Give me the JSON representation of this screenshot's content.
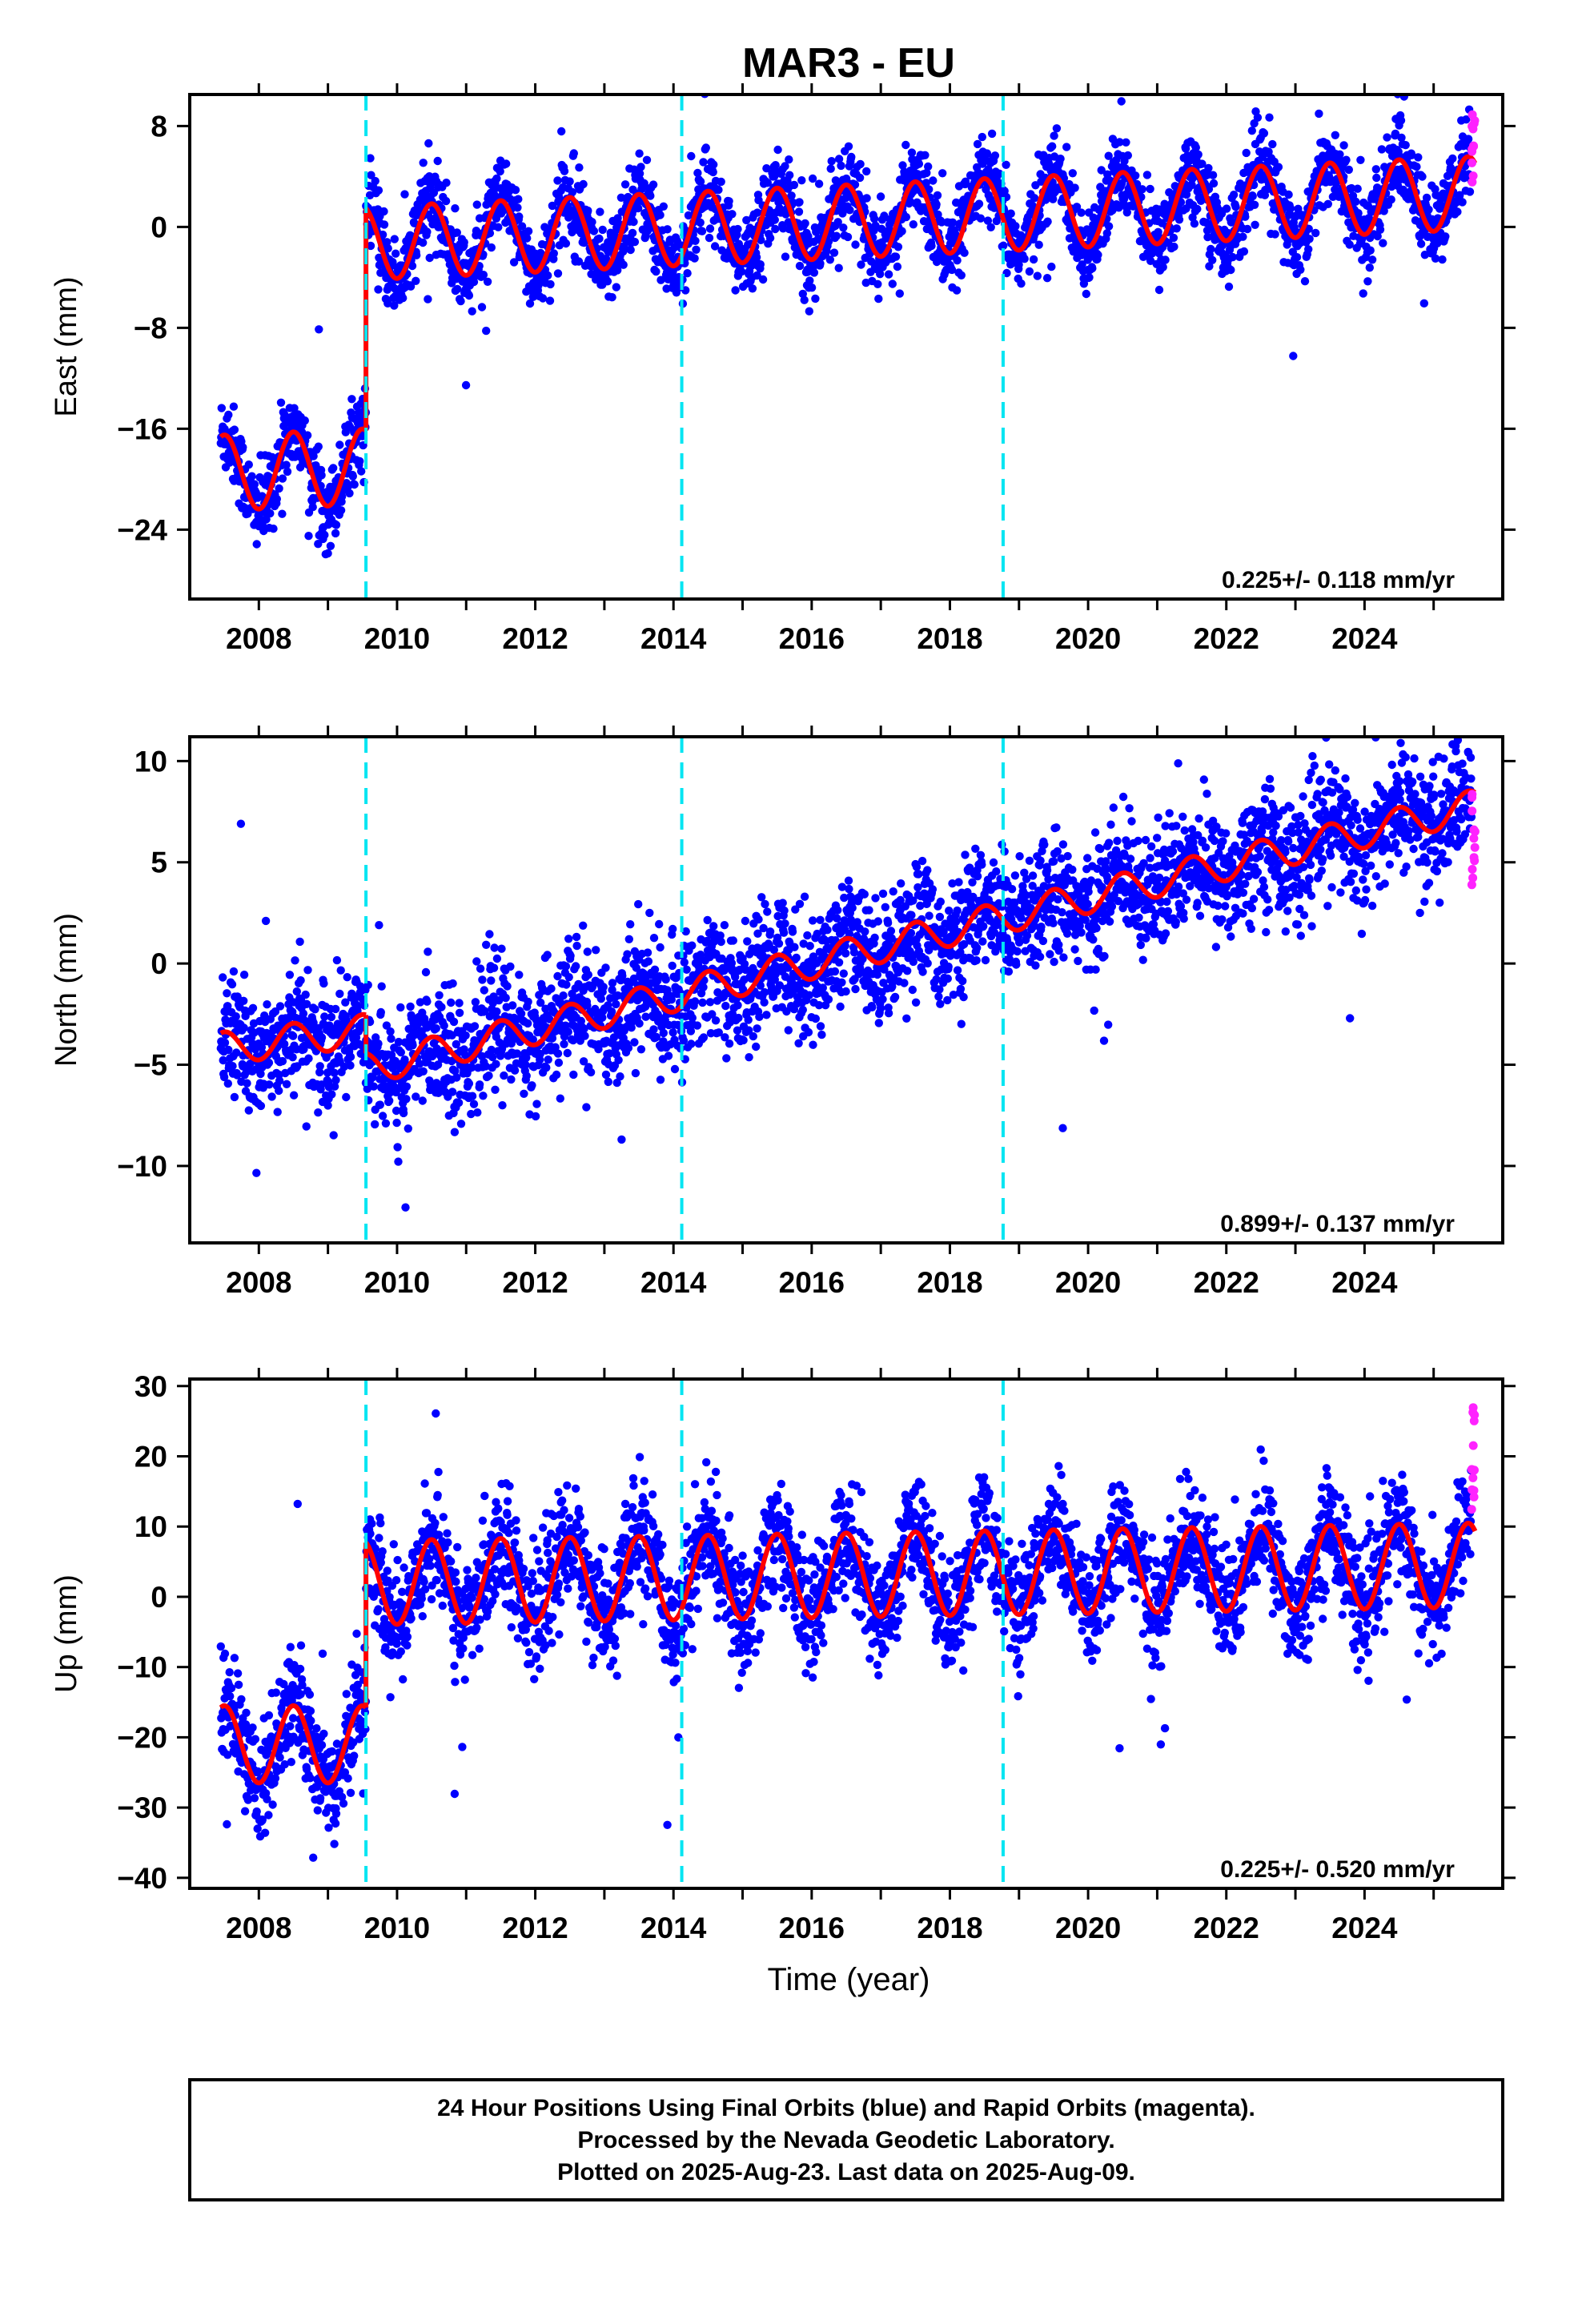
{
  "title": "MAR3 - EU",
  "footer": {
    "lines": [
      "24 Hour Positions Using Final Orbits (blue) and Rapid Orbits (magenta).",
      "Processed by the Nevada Geodetic Laboratory.",
      "Plotted on 2025-Aug-23. Last data on 2025-Aug-09."
    ]
  },
  "colors": {
    "final": "#0000ff",
    "rapid": "#ff22ff",
    "model": "#ff0000",
    "event": "#00e5f2",
    "frame": "#000000"
  },
  "chart_data": [
    {
      "type": "scatter",
      "component": "East",
      "ylabel": "East (mm)",
      "xlabel": "",
      "xlim": [
        2007.0,
        2026.0
      ],
      "ylim": [
        -29.5,
        10.5
      ],
      "yticks": [
        8,
        0,
        -8,
        -16,
        -24
      ],
      "xticks": [
        2008,
        2010,
        2012,
        2014,
        2016,
        2018,
        2020,
        2022,
        2024
      ],
      "event_lines": [
        2009.55,
        2014.12,
        2018.77
      ],
      "rate_label": "0.225+/- 0.118 mm/yr",
      "data_start": 2007.45,
      "data_end": 2025.6,
      "series": [
        {
          "name": "Final Orbits",
          "color": "#0000ff",
          "description": "24 hour daily position estimates"
        },
        {
          "name": "Rapid Orbits",
          "color": "#ff22ff",
          "x_range": [
            2025.55,
            2025.6
          ],
          "y_range": [
            3.5,
            9.5
          ]
        },
        {
          "name": "Model",
          "color": "#ff0000",
          "segments": [
            {
              "x_range": [
                2007.45,
                2009.55
              ],
              "y_at_start": -19.5,
              "y_at_end": -19.0,
              "seasonal_amplitude": 3.0
            },
            {
              "x_range": [
                2009.55,
                2025.6
              ],
              "y_at_start": -1.3,
              "y_at_end": 2.7,
              "seasonal_amplitude": 2.9
            }
          ]
        }
      ],
      "scatter_sd": 1.6
    },
    {
      "type": "scatter",
      "component": "North",
      "ylabel": "North (mm)",
      "xlabel": "",
      "xlim": [
        2007.0,
        2026.0
      ],
      "ylim": [
        -13.8,
        11.2
      ],
      "yticks": [
        10,
        5,
        0,
        -5,
        -10
      ],
      "xticks": [
        2008,
        2010,
        2012,
        2014,
        2016,
        2018,
        2020,
        2022,
        2024
      ],
      "event_lines": [
        2009.55,
        2014.12,
        2018.77
      ],
      "rate_label": "0.899+/- 0.137 mm/yr",
      "data_start": 2007.45,
      "data_end": 2025.6,
      "series": [
        {
          "name": "Final Orbits",
          "color": "#0000ff",
          "description": "24 hour daily position estimates"
        },
        {
          "name": "Rapid Orbits",
          "color": "#ff22ff",
          "x_range": [
            2025.55,
            2025.6
          ],
          "y_range": [
            3.0,
            9.0
          ]
        },
        {
          "name": "Model",
          "color": "#ff0000",
          "segments": [
            {
              "x_range": [
                2007.45,
                2009.55
              ],
              "y_at_start": -4.2,
              "y_at_end": -3.3,
              "seasonal_amplitude": 0.8
            },
            {
              "x_range": [
                2009.55,
                2025.6
              ],
              "y_at_start": -5.2,
              "y_at_end": 7.8,
              "seasonal_amplitude": 0.8
            }
          ]
        }
      ],
      "scatter_sd": 1.5
    },
    {
      "type": "scatter",
      "component": "Up",
      "ylabel": "Up (mm)",
      "xlabel": "Time (year)",
      "xlim": [
        2007.0,
        2026.0
      ],
      "ylim": [
        -41.5,
        31.0
      ],
      "yticks": [
        30,
        20,
        10,
        0,
        -10,
        -20,
        -30,
        -40
      ],
      "xticks": [
        2008,
        2010,
        2012,
        2014,
        2016,
        2018,
        2020,
        2022,
        2024
      ],
      "event_lines": [
        2009.55,
        2014.12,
        2018.77
      ],
      "rate_label": "0.225+/- 0.520 mm/yr",
      "data_start": 2007.45,
      "data_end": 2025.6,
      "series": [
        {
          "name": "Final Orbits",
          "color": "#0000ff",
          "description": "24 hour daily position estimates"
        },
        {
          "name": "Rapid Orbits",
          "color": "#ff22ff",
          "x_range": [
            2025.55,
            2025.6
          ],
          "y_range": [
            12.0,
            29.0
          ]
        },
        {
          "name": "Model",
          "color": "#ff0000",
          "segments": [
            {
              "x_range": [
                2007.45,
                2009.55
              ],
              "y_at_start": -21.0,
              "y_at_end": -21.0,
              "seasonal_amplitude": 5.5
            },
            {
              "x_range": [
                2009.55,
                2025.6
              ],
              "y_at_start": 2.0,
              "y_at_end": 4.5,
              "seasonal_amplitude": 6.0
            }
          ]
        }
      ],
      "scatter_sd": 4.0
    }
  ]
}
